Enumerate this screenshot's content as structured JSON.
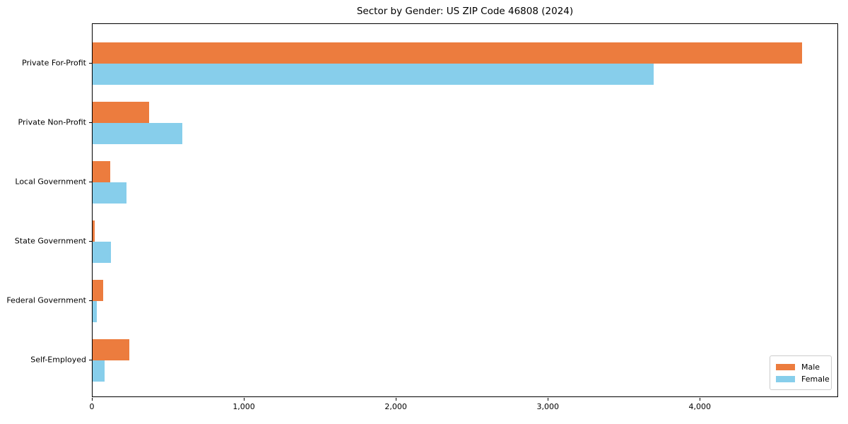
{
  "title": "Sector by Gender: US ZIP Code 46808 (2024)",
  "colors": {
    "male": "#ec7c3e",
    "female": "#87ceeb",
    "axis": "#000000",
    "legend_border": "#cccccc",
    "background": "#ffffff"
  },
  "chart_data": {
    "type": "bar",
    "orientation": "horizontal",
    "title": "Sector by Gender: US ZIP Code 46808 (2024)",
    "categories": [
      "Private For-Profit",
      "Private Non-Profit",
      "Local Government",
      "State Government",
      "Federal Government",
      "Self-Employed"
    ],
    "series": [
      {
        "name": "Male",
        "color": "#ec7c3e",
        "values": [
          4670,
          370,
          115,
          15,
          70,
          240
        ]
      },
      {
        "name": "Female",
        "color": "#87ceeb",
        "values": [
          3690,
          590,
          225,
          120,
          30,
          80
        ]
      }
    ],
    "xlabel": "",
    "ylabel": "",
    "xlim": [
      0,
      4910
    ],
    "xticks": [
      0,
      1000,
      2000,
      3000,
      4000
    ],
    "xtick_labels": [
      "0",
      "1,000",
      "2,000",
      "3,000",
      "4,000"
    ],
    "legend_position": "lower right",
    "grid": false
  },
  "legend": {
    "items": [
      {
        "label": "Male"
      },
      {
        "label": "Female"
      }
    ]
  }
}
